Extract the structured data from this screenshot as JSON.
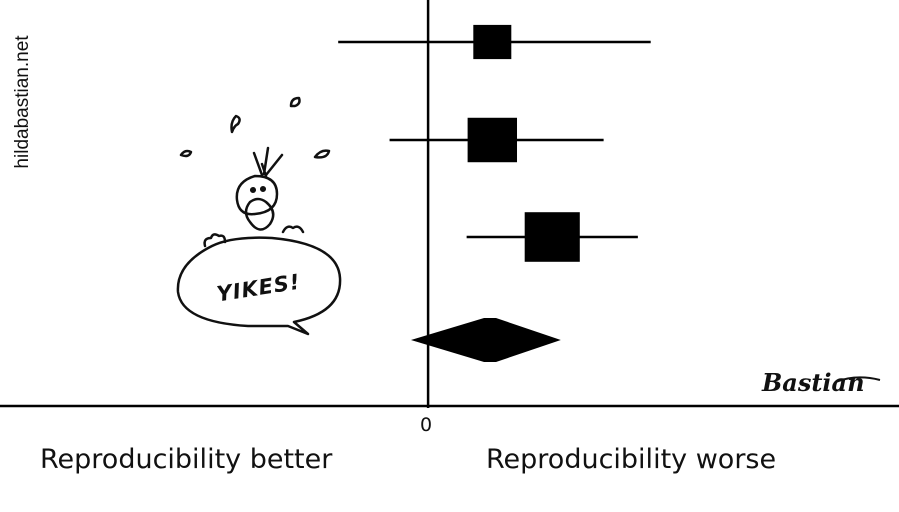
{
  "credit": "hildabastian.net",
  "signature": "Bastian",
  "cartoon": {
    "speech": "YIKES!"
  },
  "chart_data": {
    "type": "forest",
    "zero_label": "0",
    "left_label": "Reproducibility better",
    "right_label": "Reproducibility worse",
    "xlim": [
      -1.0,
      1.1
    ],
    "studies": [
      {
        "estimate": 0.15,
        "ci": [
          -0.21,
          0.52
        ],
        "weight": 1.0
      },
      {
        "estimate": 0.15,
        "ci": [
          -0.09,
          0.41
        ],
        "weight": 1.3
      },
      {
        "estimate": 0.29,
        "ci": [
          0.09,
          0.49
        ],
        "weight": 1.45
      }
    ],
    "pooled": {
      "estimate": 0.14,
      "ci": [
        -0.04,
        0.31
      ]
    },
    "colors": {
      "ink": "#000000"
    }
  }
}
